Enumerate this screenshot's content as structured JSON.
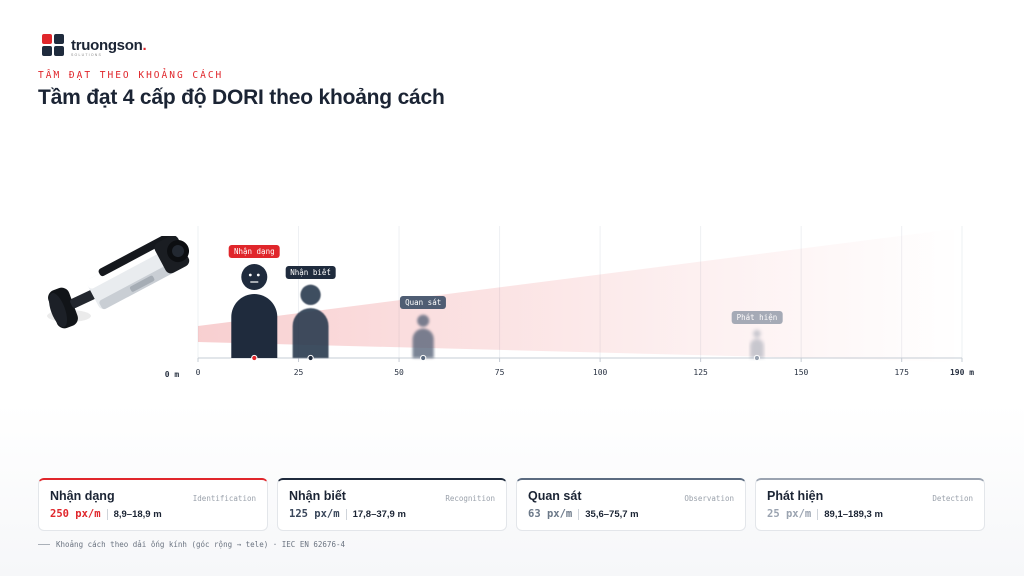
{
  "brand": {
    "name": "truongson",
    "dot": ".",
    "sub": "SOLUTIONS"
  },
  "header": {
    "eyebrow": "TẦM ĐẠT THEO KHOẢNG CÁCH",
    "title": "Tầm đạt 4 cấp độ DORI theo khoảng cách"
  },
  "colors": {
    "accent": "#e0262b",
    "dark": "#1f2b3d",
    "axis": "#c6ccd4"
  },
  "chart_data": {
    "type": "scatter",
    "x_unit": "m",
    "xlim": [
      0,
      190
    ],
    "ticks": [
      0,
      25,
      50,
      75,
      100,
      125,
      150,
      175
    ],
    "origin_label": "0 m",
    "end_label": "190 m",
    "series": [
      {
        "name": "Nhận dạng",
        "x": 14,
        "color": "#e0262b",
        "marker": "#e0262b",
        "opacity": 1.0,
        "blur": 0,
        "scale": 1.0
      },
      {
        "name": "Nhận biết",
        "x": 28,
        "color": "#2c3a4f",
        "marker": "#1f2b3d",
        "opacity": 0.9,
        "blur": 0.4,
        "scale": 0.78
      },
      {
        "name": "Quan sát",
        "x": 56,
        "color": "#4f5d73",
        "marker": "#5b6b80",
        "opacity": 0.75,
        "blur": 1.2,
        "scale": 0.46
      },
      {
        "name": "Phát hiện",
        "x": 139,
        "color": "#8892a2",
        "marker": "#98a2b0",
        "opacity": 0.45,
        "blur": 1.8,
        "scale": 0.3
      }
    ]
  },
  "cards": [
    {
      "name": "Nhận dạng",
      "en": "Identification",
      "px": "250 px/m",
      "range": "8,9–18,9 m",
      "accent": "#e0262b",
      "pxColor": "#e0262b"
    },
    {
      "name": "Nhận biết",
      "en": "Recognition",
      "px": "125 px/m",
      "range": "17,8–37,9 m",
      "accent": "#1f2b3d",
      "pxColor": "#3a475b"
    },
    {
      "name": "Quan sát",
      "en": "Observation",
      "px": "63 px/m",
      "range": "35,6–75,7 m",
      "accent": "#5b6b80",
      "pxColor": "#6b7888"
    },
    {
      "name": "Phát hiện",
      "en": "Detection",
      "px": "25 px/m",
      "range": "89,1–189,3 m",
      "accent": "#9aa3b0",
      "pxColor": "#9aa3b0"
    }
  ],
  "footnote": "Khoảng cách theo dải ống kính (góc rộng → tele) · IEC EN 62676-4"
}
